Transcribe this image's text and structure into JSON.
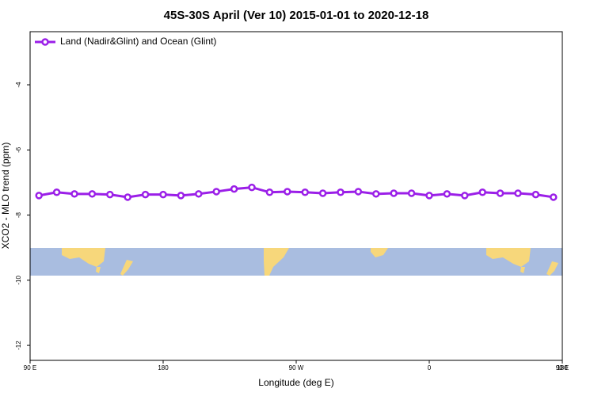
{
  "chart_data": {
    "type": "line",
    "title": "45S-30S April (Ver 10)   2015-01-01 to 2020-12-18",
    "x_label": "Longitude (deg E)",
    "y_label": "XCO2 - MLO trend (ppm)",
    "xlim": [
      90,
      450
    ],
    "xticks": [
      {
        "value": 90,
        "label": "90 E"
      },
      180,
      {
        "value": 270,
        "label": "90 W"
      },
      {
        "value": 360,
        "label": "0"
      },
      {
        "value": 450,
        "label": "90 E"
      },
      {
        "value": 540,
        "label": "180"
      }
    ],
    "ylim": [
      -12.46,
      -2.37
    ],
    "yticks": [
      -4,
      -6,
      -8,
      -10,
      -12
    ],
    "legend": "top-left",
    "x": [
      96,
      108,
      120,
      132,
      144,
      156,
      168,
      180,
      192,
      204,
      216,
      228,
      240,
      252,
      264,
      276,
      288,
      300,
      312,
      324,
      336,
      348,
      360,
      372,
      384,
      396,
      408,
      420,
      432,
      444
    ],
    "series": [
      {
        "name": "Land (Nadir&Glint) and Ocean (Glint)",
        "color": "#9b1fe8",
        "values": [
          -7.4,
          -7.3,
          -7.35,
          -7.35,
          -7.37,
          -7.45,
          -7.37,
          -7.37,
          -7.4,
          -7.35,
          -7.28,
          -7.2,
          -7.15,
          -7.3,
          -7.28,
          -7.3,
          -7.33,
          -7.3,
          -7.28,
          -7.35,
          -7.33,
          -7.33,
          -7.4,
          -7.35,
          -7.4,
          -7.3,
          -7.33,
          -7.33,
          -7.37,
          -7.45
        ]
      }
    ]
  }
}
